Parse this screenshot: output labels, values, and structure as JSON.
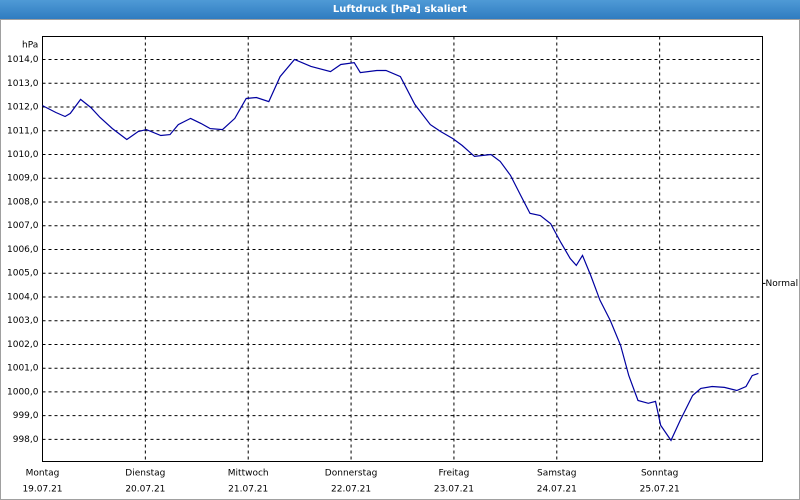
{
  "chart_data": {
    "type": "line",
    "title": "Luftdruck [hPa] skaliert",
    "y_unit": "hPa",
    "xlim": [
      0,
      7
    ],
    "xticks": [
      {
        "value": 0,
        "label": "Montag"
      },
      {
        "value": 1,
        "label": "Dienstag"
      },
      {
        "value": 2,
        "label": "Mittwoch"
      },
      {
        "value": 3,
        "label": "Donnerstag"
      },
      {
        "value": 4,
        "label": "Freitag"
      },
      {
        "value": 5,
        "label": "Samstag"
      },
      {
        "value": 6,
        "label": "Sonntag"
      }
    ],
    "xtick_dates": [
      "19.07.21",
      "20.07.21",
      "21.07.21",
      "22.07.21",
      "23.07.21",
      "24.07.21",
      "25.07.21"
    ],
    "ylim": [
      997.07,
      1014.97
    ],
    "yticks": [
      {
        "value": 998,
        "label": "998,0"
      },
      {
        "value": 999,
        "label": "999,0"
      },
      {
        "value": 1000,
        "label": "1000,0"
      },
      {
        "value": 1001,
        "label": "1001,0"
      },
      {
        "value": 1002,
        "label": "1002,0"
      },
      {
        "value": 1003,
        "label": "1003,0"
      },
      {
        "value": 1004,
        "label": "1004,0"
      },
      {
        "value": 1005,
        "label": "1005,0"
      },
      {
        "value": 1006,
        "label": "1006,0"
      },
      {
        "value": 1007,
        "label": "1007,0"
      },
      {
        "value": 1008,
        "label": "1008,0"
      },
      {
        "value": 1009,
        "label": "1009,0"
      },
      {
        "value": 1010,
        "label": "1010,0"
      },
      {
        "value": 1011,
        "label": "1011,0"
      },
      {
        "value": 1012,
        "label": "1012,0"
      },
      {
        "value": 1013,
        "label": "1013,0"
      },
      {
        "value": 1014,
        "label": "1014,0"
      }
    ],
    "grid": true,
    "normal": {
      "label": "Normal",
      "value": 1004.57
    },
    "series": [
      {
        "color": "#0000a0",
        "x": [
          0,
          0.13,
          0.22,
          0.27,
          0.37,
          0.47,
          0.56,
          0.68,
          0.82,
          0.93,
          1.01,
          1.15,
          1.24,
          1.32,
          1.44,
          1.54,
          1.63,
          1.75,
          1.87,
          1.98,
          2.08,
          2.2,
          2.31,
          2.45,
          2.61,
          2.8,
          2.9,
          3.03,
          3.09,
          3.25,
          3.34,
          3.48,
          3.62,
          3.77,
          3.87,
          3.99,
          4.08,
          4.2,
          4.36,
          4.45,
          4.55,
          4.65,
          4.74,
          4.84,
          4.94,
          5.04,
          5.13,
          5.19,
          5.25,
          5.33,
          5.42,
          5.52,
          5.62,
          5.7,
          5.79,
          5.89,
          5.96,
          6.01,
          6.11,
          6.2,
          6.32,
          6.4,
          6.51,
          6.63,
          6.75,
          6.84,
          6.9,
          6.96
        ],
        "values": [
          1012.06,
          1011.77,
          1011.6,
          1011.73,
          1012.32,
          1011.98,
          1011.56,
          1011.09,
          1010.63,
          1010.97,
          1011.05,
          1010.8,
          1010.84,
          1011.26,
          1011.52,
          1011.31,
          1011.09,
          1011.05,
          1011.52,
          1012.36,
          1012.4,
          1012.23,
          1013.28,
          1014.0,
          1013.71,
          1013.49,
          1013.79,
          1013.87,
          1013.45,
          1013.54,
          1013.54,
          1013.28,
          1012.11,
          1011.26,
          1010.97,
          1010.67,
          1010.38,
          1009.92,
          1010.0,
          1009.71,
          1009.12,
          1008.27,
          1007.52,
          1007.43,
          1007.09,
          1006.29,
          1005.62,
          1005.33,
          1005.75,
          1004.91,
          1003.86,
          1003.01,
          1001.96,
          1000.69,
          999.64,
          999.52,
          999.6,
          998.59,
          997.96,
          998.8,
          999.85,
          1000.15,
          1000.23,
          1000.19,
          1000.06,
          1000.23,
          1000.69,
          1000.78
        ]
      }
    ]
  }
}
